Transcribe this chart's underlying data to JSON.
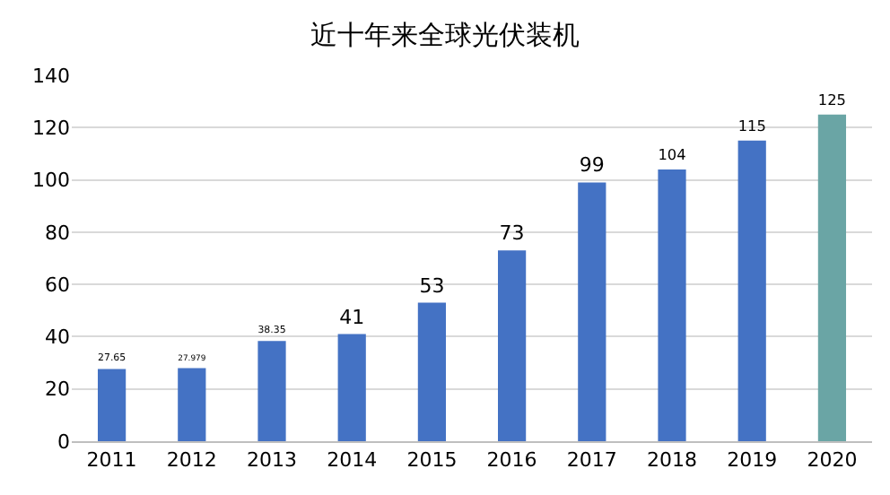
{
  "chart_data": {
    "type": "bar",
    "title": "近十年来全球光伏装机",
    "categories": [
      "2011",
      "2012",
      "2013",
      "2014",
      "2015",
      "2016",
      "2017",
      "2018",
      "2019",
      "2020"
    ],
    "values": [
      27.65,
      27.979,
      38.35,
      41,
      53,
      73,
      99,
      104,
      115,
      125
    ],
    "colors": [
      "#4472c4",
      "#4472c4",
      "#4472c4",
      "#4472c4",
      "#4472c4",
      "#4472c4",
      "#4472c4",
      "#4472c4",
      "#4472c4",
      "#6aa5a5"
    ],
    "ylim": [
      0,
      140
    ],
    "yticks": [
      0,
      20,
      40,
      60,
      80,
      100,
      120,
      140
    ],
    "grid": "y",
    "data_labels": true
  }
}
